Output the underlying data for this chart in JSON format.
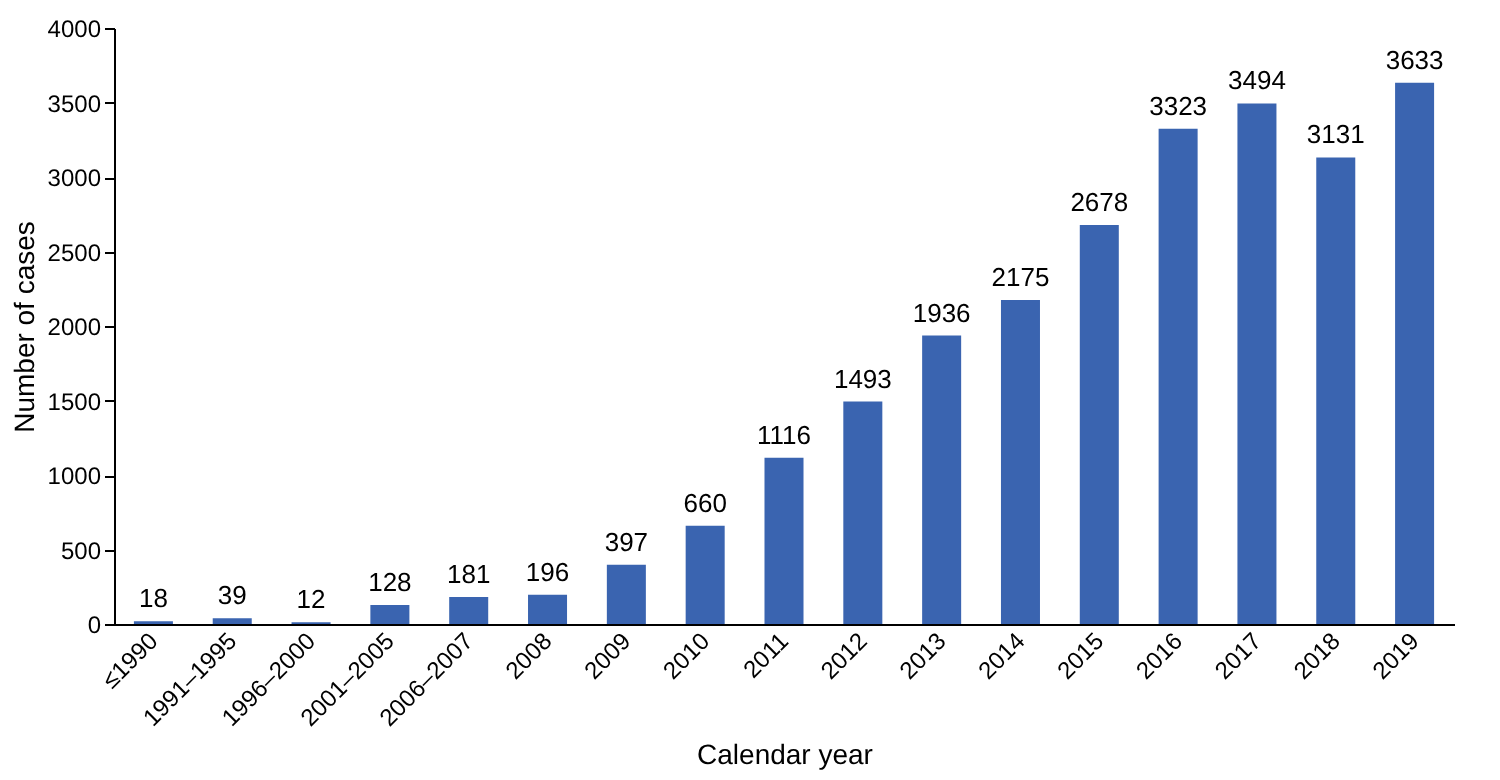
{
  "chart_data": {
    "type": "bar",
    "xlabel": "Calendar year",
    "ylabel": "Number of cases",
    "categories": [
      "≤1990",
      "1991–1995",
      "1996–2000",
      "2001–2005",
      "2006–2007",
      "2008",
      "2009",
      "2010",
      "2011",
      "2012",
      "2013",
      "2014",
      "2015",
      "2016",
      "2017",
      "2018",
      "2019"
    ],
    "values": [
      18,
      39,
      12,
      128,
      181,
      196,
      397,
      660,
      1116,
      1493,
      1936,
      2175,
      2678,
      3323,
      3494,
      3131,
      3633
    ],
    "color": "#3a64b0",
    "ylim": [
      0,
      4000
    ],
    "yticks": [
      0,
      500,
      1000,
      1500,
      2000,
      2500,
      3000,
      3500,
      4000
    ],
    "grid": false,
    "data_labels": true
  }
}
